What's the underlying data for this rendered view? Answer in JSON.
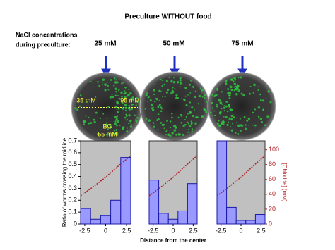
{
  "figure": {
    "title": "Preculture WITHOUT food",
    "row_label": [
      "NaCl concentrations",
      "during preculture:"
    ],
    "conditions": [
      "25 mM",
      "50 mM",
      "75 mM"
    ],
    "dish_labels": {
      "low": "35 mM",
      "high": "95 mM",
      "bg": "BG",
      "bg_value": "55 mM"
    }
  },
  "chart_data": [
    {
      "type": "histogram",
      "bins": [
        -3,
        -1.8,
        -0.6,
        0.6,
        1.8,
        3
      ],
      "values": [
        0.13,
        0.04,
        0.07,
        0.2,
        0.56
      ],
      "color": "#9999ff",
      "xlim": [
        -3,
        3
      ],
      "xticks": [
        -2.5,
        0,
        2.5
      ],
      "ylim": [
        0,
        0.7
      ],
      "yticks": [
        0,
        0.1,
        0.2,
        0.3,
        0.4,
        0.5,
        0.6,
        0.7
      ],
      "y2lim": [
        0,
        112
      ],
      "y_label": "Ratio of worms crossing the midline",
      "chloride": {
        "x": [
          -3,
          -1.5,
          0,
          1.5,
          3
        ],
        "values": [
          38,
          50,
          63,
          78,
          92
        ],
        "color": "#b22222",
        "axis": "y2"
      }
    },
    {
      "type": "histogram",
      "bins": [
        -3,
        -1.8,
        -0.6,
        0.6,
        1.8,
        3
      ],
      "values": [
        0.37,
        0.09,
        0.04,
        0.11,
        0.34
      ],
      "color": "#9999ff",
      "xlim": [
        -3,
        3
      ],
      "xticks": [
        -2.5,
        0,
        2.5
      ],
      "ylim": [
        0,
        0.7
      ],
      "y2lim": [
        0,
        112
      ],
      "x_label": "Distance from the center",
      "chloride": {
        "x": [
          -3,
          -1.5,
          0,
          1.5,
          3
        ],
        "values": [
          38,
          50,
          63,
          78,
          92
        ],
        "color": "#b22222",
        "axis": "y2"
      }
    },
    {
      "type": "histogram",
      "bins": [
        -3,
        -1.8,
        -0.6,
        0.6,
        1.8,
        3
      ],
      "values": [
        0.7,
        0.14,
        0.03,
        0.03,
        0.08
      ],
      "color": "#9999ff",
      "xlim": [
        -3,
        3
      ],
      "xticks": [
        -2.5,
        0,
        2.5
      ],
      "ylim": [
        0,
        0.7
      ],
      "y2lim": [
        0,
        112
      ],
      "y2ticks": [
        0,
        20,
        40,
        60,
        80,
        100
      ],
      "y2_label": "[Chloride] (mM)",
      "chloride": {
        "x": [
          -3,
          -1.5,
          0,
          1.5,
          3
        ],
        "values": [
          38,
          50,
          63,
          78,
          92
        ],
        "color": "#b22222",
        "axis": "y2"
      }
    }
  ]
}
